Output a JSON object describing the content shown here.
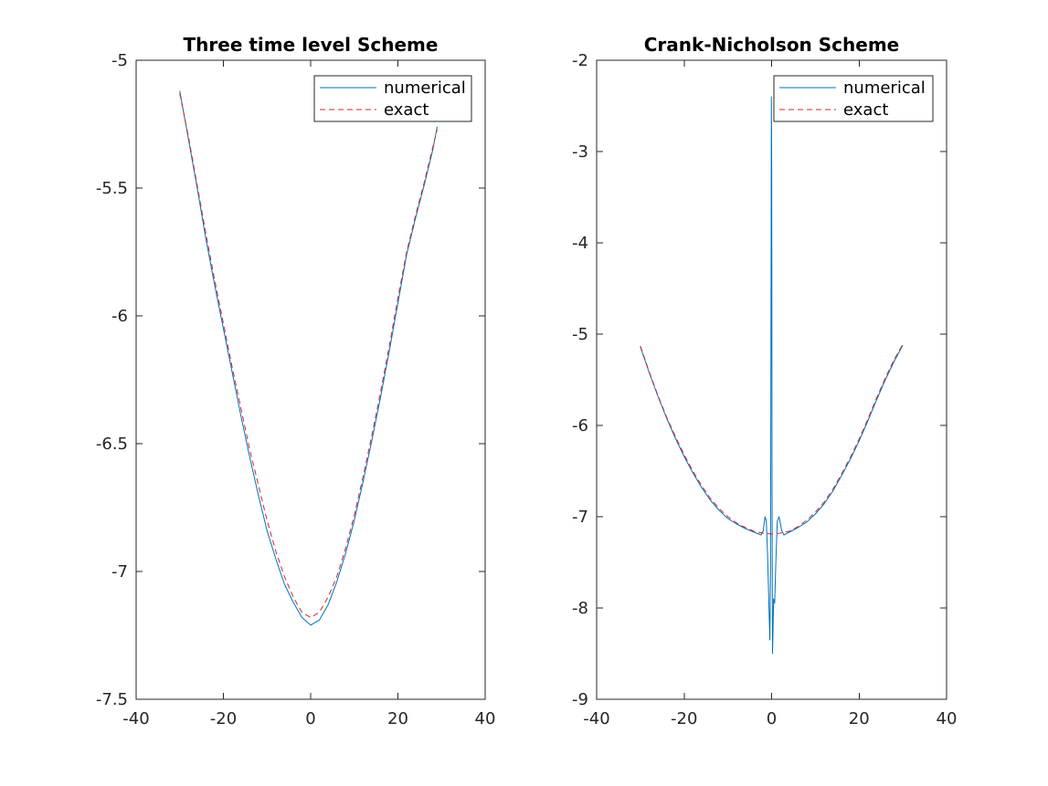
{
  "figure": {
    "background": "#ffffff"
  },
  "chart_data": [
    {
      "type": "line",
      "title": "Three time level Scheme",
      "xlabel": "",
      "ylabel": "",
      "xlim": [
        -40,
        40
      ],
      "ylim": [
        -7.5,
        -5
      ],
      "xticks": [
        -40,
        -20,
        0,
        20,
        40
      ],
      "xtick_labels": [
        "-40",
        "-20",
        "0",
        "20",
        "40"
      ],
      "yticks": [
        -7.5,
        -7,
        -6.5,
        -6,
        -5.5,
        -5
      ],
      "ytick_labels": [
        "-7.5",
        "-7",
        "-6.5",
        "-6",
        "-5.5",
        "-5"
      ],
      "grid": false,
      "legend_position": "top-right",
      "series": [
        {
          "name": "numerical",
          "color": "#0072bd",
          "style": "solid",
          "points": [
            [
              -30,
              -5.12
            ],
            [
              -28,
              -5.31
            ],
            [
              -26,
              -5.5
            ],
            [
              -24,
              -5.7
            ],
            [
              -22,
              -5.88
            ],
            [
              -20,
              -6.05
            ],
            [
              -18,
              -6.22
            ],
            [
              -16,
              -6.39
            ],
            [
              -14,
              -6.55
            ],
            [
              -12,
              -6.7
            ],
            [
              -10,
              -6.84
            ],
            [
              -8,
              -6.95
            ],
            [
              -6,
              -7.05
            ],
            [
              -4,
              -7.12
            ],
            [
              -2,
              -7.18
            ],
            [
              0,
              -7.21
            ],
            [
              2,
              -7.19
            ],
            [
              4,
              -7.13
            ],
            [
              6,
              -7.04
            ],
            [
              8,
              -6.93
            ],
            [
              10,
              -6.8
            ],
            [
              12,
              -6.65
            ],
            [
              14,
              -6.49
            ],
            [
              16,
              -6.32
            ],
            [
              18,
              -6.14
            ],
            [
              20,
              -5.95
            ],
            [
              22,
              -5.76
            ],
            [
              24,
              -5.62
            ],
            [
              26,
              -5.49
            ],
            [
              28,
              -5.35
            ],
            [
              29,
              -5.26
            ]
          ]
        },
        {
          "name": "exact",
          "color": "#d62728",
          "style": "dashed",
          "points": [
            [
              -30,
              -5.13
            ],
            [
              -28,
              -5.3
            ],
            [
              -26,
              -5.49
            ],
            [
              -24,
              -5.68
            ],
            [
              -22,
              -5.86
            ],
            [
              -20,
              -6.03
            ],
            [
              -18,
              -6.2
            ],
            [
              -16,
              -6.36
            ],
            [
              -14,
              -6.52
            ],
            [
              -12,
              -6.66
            ],
            [
              -10,
              -6.8
            ],
            [
              -8,
              -6.92
            ],
            [
              -6,
              -7.02
            ],
            [
              -4,
              -7.1
            ],
            [
              -2,
              -7.16
            ],
            [
              0,
              -7.18
            ],
            [
              2,
              -7.16
            ],
            [
              4,
              -7.1
            ],
            [
              6,
              -7.02
            ],
            [
              8,
              -6.91
            ],
            [
              10,
              -6.78
            ],
            [
              12,
              -6.63
            ],
            [
              14,
              -6.47
            ],
            [
              16,
              -6.3
            ],
            [
              18,
              -6.12
            ],
            [
              20,
              -5.93
            ],
            [
              22,
              -5.75
            ],
            [
              24,
              -5.61
            ],
            [
              26,
              -5.48
            ],
            [
              28,
              -5.34
            ],
            [
              29,
              -5.27
            ]
          ]
        }
      ]
    },
    {
      "type": "line",
      "title": "Crank-Nicholson Scheme",
      "xlabel": "",
      "ylabel": "",
      "xlim": [
        -40,
        40
      ],
      "ylim": [
        -9,
        -2
      ],
      "xticks": [
        -40,
        -20,
        0,
        20,
        40
      ],
      "xtick_labels": [
        "-40",
        "-20",
        "0",
        "20",
        "40"
      ],
      "yticks": [
        -9,
        -8,
        -7,
        -6,
        -5,
        -4,
        -3,
        -2
      ],
      "ytick_labels": [
        "-9",
        "-8",
        "-7",
        "-6",
        "-5",
        "-4",
        "-3",
        "-2"
      ],
      "grid": false,
      "legend_position": "top-right",
      "series": [
        {
          "name": "numerical",
          "color": "#0072bd",
          "style": "solid",
          "points": [
            [
              -30,
              -5.14
            ],
            [
              -28,
              -5.42
            ],
            [
              -26,
              -5.68
            ],
            [
              -24,
              -5.92
            ],
            [
              -22,
              -6.14
            ],
            [
              -20,
              -6.34
            ],
            [
              -18,
              -6.52
            ],
            [
              -16,
              -6.68
            ],
            [
              -14,
              -6.82
            ],
            [
              -12,
              -6.93
            ],
            [
              -10,
              -7.02
            ],
            [
              -8,
              -7.08
            ],
            [
              -6,
              -7.13
            ],
            [
              -4,
              -7.17
            ],
            [
              -2.4,
              -7.2
            ],
            [
              -1.9,
              -7.15
            ],
            [
              -1.5,
              -7.0
            ],
            [
              -1.2,
              -7.05
            ],
            [
              -0.9,
              -7.45
            ],
            [
              -0.6,
              -8.0
            ],
            [
              -0.4,
              -8.35
            ],
            [
              -0.25,
              -7.6
            ],
            [
              -0.12,
              -4.3
            ],
            [
              -0.05,
              -2.4
            ],
            [
              0.02,
              -3.2
            ],
            [
              0.1,
              -6.6
            ],
            [
              0.2,
              -8.5
            ],
            [
              0.3,
              -8.3
            ],
            [
              0.45,
              -7.9
            ],
            [
              0.7,
              -7.95
            ],
            [
              1.0,
              -7.45
            ],
            [
              1.3,
              -7.05
            ],
            [
              1.7,
              -7.0
            ],
            [
              2.3,
              -7.15
            ],
            [
              2.8,
              -7.2
            ],
            [
              4,
              -7.17
            ],
            [
              6,
              -7.12
            ],
            [
              8,
              -7.06
            ],
            [
              10,
              -6.97
            ],
            [
              12,
              -6.86
            ],
            [
              14,
              -6.72
            ],
            [
              16,
              -6.55
            ],
            [
              18,
              -6.37
            ],
            [
              20,
              -6.17
            ],
            [
              22,
              -5.95
            ],
            [
              24,
              -5.72
            ],
            [
              26,
              -5.5
            ],
            [
              28,
              -5.3
            ],
            [
              30,
              -5.12
            ]
          ]
        },
        {
          "name": "exact",
          "color": "#d62728",
          "style": "dashed",
          "points": [
            [
              -30,
              -5.13
            ],
            [
              -28,
              -5.41
            ],
            [
              -26,
              -5.67
            ],
            [
              -24,
              -5.91
            ],
            [
              -22,
              -6.12
            ],
            [
              -20,
              -6.32
            ],
            [
              -18,
              -6.5
            ],
            [
              -16,
              -6.66
            ],
            [
              -14,
              -6.8
            ],
            [
              -12,
              -6.91
            ],
            [
              -10,
              -7.0
            ],
            [
              -8,
              -7.07
            ],
            [
              -6,
              -7.12
            ],
            [
              -4,
              -7.16
            ],
            [
              -2,
              -7.18
            ],
            [
              0,
              -7.19
            ],
            [
              2,
              -7.18
            ],
            [
              4,
              -7.16
            ],
            [
              6,
              -7.11
            ],
            [
              8,
              -7.04
            ],
            [
              10,
              -6.95
            ],
            [
              12,
              -6.84
            ],
            [
              14,
              -6.7
            ],
            [
              16,
              -6.53
            ],
            [
              18,
              -6.35
            ],
            [
              20,
              -6.15
            ],
            [
              22,
              -5.93
            ],
            [
              24,
              -5.7
            ],
            [
              26,
              -5.48
            ],
            [
              28,
              -5.28
            ],
            [
              30,
              -5.11
            ]
          ]
        }
      ]
    }
  ]
}
